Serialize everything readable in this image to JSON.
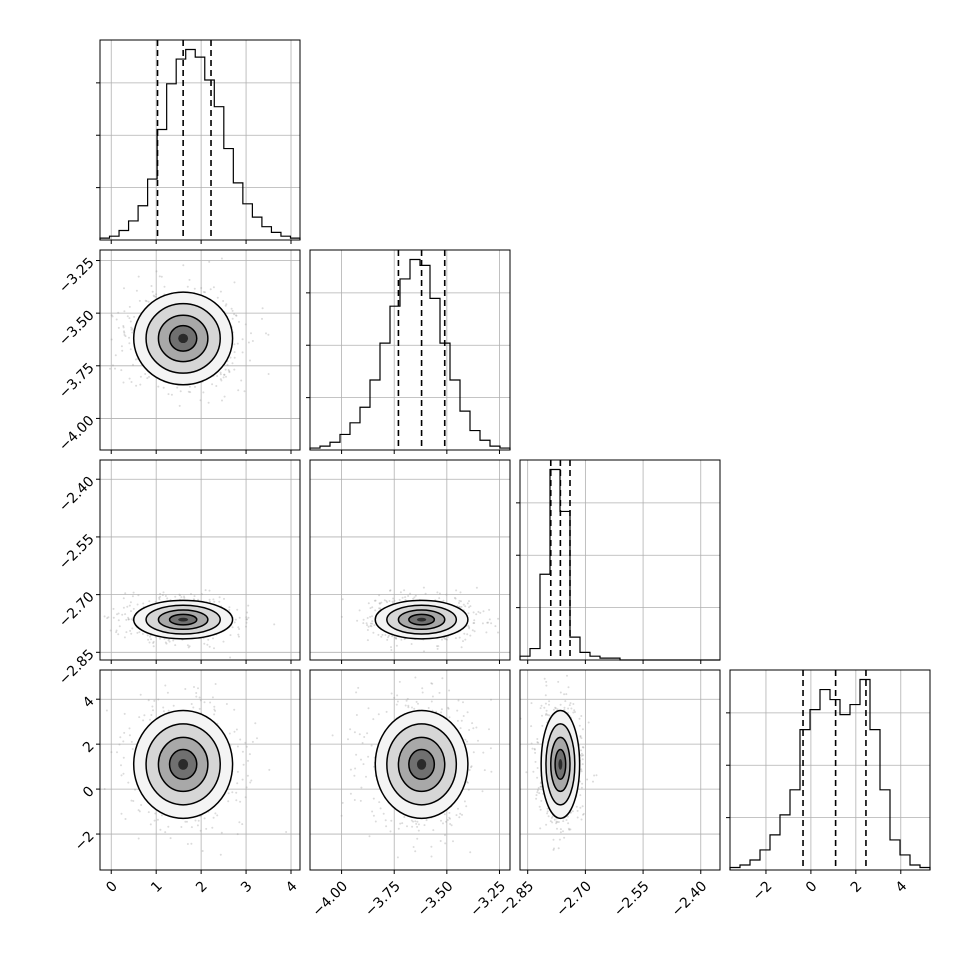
{
  "chart_data": {
    "type": "corner",
    "params": [
      {
        "hist": [
          1,
          2,
          5,
          10,
          18,
          32,
          58,
          82,
          95,
          100,
          96,
          84,
          70,
          48,
          30,
          19,
          12,
          7,
          4,
          2,
          1
        ],
        "range": [
          -0.25,
          4.2
        ],
        "quantiles": [
          1.03,
          1.6,
          2.22
        ],
        "ticks": [
          0,
          1,
          2,
          3,
          4
        ],
        "tick_labels": [
          "0",
          "1",
          "2",
          "3",
          "4"
        ],
        "center": 1.6,
        "sd": 0.55
      },
      {
        "hist": [
          1,
          2,
          4,
          8,
          14,
          22,
          36,
          55,
          74,
          88,
          98,
          95,
          78,
          55,
          36,
          20,
          10,
          5,
          2,
          1
        ],
        "range": [
          -4.15,
          -3.2
        ],
        "quantiles": [
          -3.73,
          -3.62,
          -3.51
        ],
        "ticks": [
          -4.0,
          -3.75,
          -3.5,
          -3.25
        ],
        "tick_labels": [
          "−4.00",
          "−3.75",
          "−3.50",
          "−3.25"
        ],
        "center": -3.62,
        "sd": 0.11
      },
      {
        "hist": [
          2,
          6,
          45,
          100,
          78,
          12,
          4,
          2,
          1,
          1,
          0,
          0,
          0,
          0,
          0,
          0,
          0,
          0,
          0,
          0
        ],
        "range": [
          -2.87,
          -2.35
        ],
        "quantiles": [
          -2.79,
          -2.765,
          -2.74
        ],
        "ticks": [
          -2.85,
          -2.7,
          -2.55,
          -2.4
        ],
        "tick_labels": [
          "−2.85",
          "−2.70",
          "−2.55",
          "−2.40"
        ],
        "center": -2.765,
        "sd": 0.025
      },
      {
        "hist": [
          1,
          2,
          4,
          8,
          14,
          22,
          32,
          56,
          64,
          72,
          68,
          62,
          66,
          76,
          56,
          32,
          12,
          6,
          2,
          1
        ],
        "range": [
          -3.6,
          5.3
        ],
        "quantiles": [
          -0.35,
          1.1,
          2.45
        ],
        "ticks": [
          -2,
          0,
          2,
          4
        ],
        "tick_labels": [
          "−2",
          "0",
          "2",
          "4"
        ],
        "center": 1.1,
        "sd": 1.2
      }
    ],
    "grid": true,
    "quantile_style": "dashed",
    "colors": {
      "axes": "#000000",
      "grid": "#b0b0b0",
      "density": "#555555"
    }
  }
}
